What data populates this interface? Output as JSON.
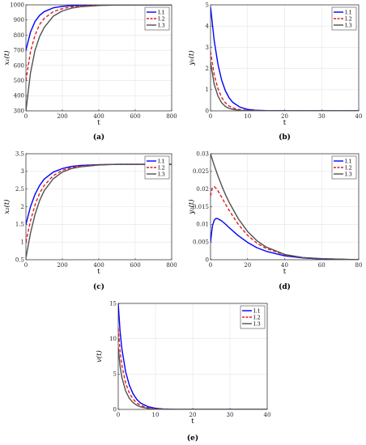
{
  "chart_data": [
    {
      "type": "line",
      "panel_label": "(a)",
      "xlabel": "t",
      "ylabel": "x₁(t)",
      "xlim": [
        0,
        800
      ],
      "ylim": [
        300,
        1000
      ],
      "xticks": [
        "0",
        "200",
        "400",
        "600",
        "800"
      ],
      "yticks": [
        "300",
        "400",
        "500",
        "600",
        "700",
        "800",
        "900",
        "1000"
      ],
      "grid": true,
      "legend_position": "top-right",
      "series": [
        {
          "name": "I.1",
          "color": "#0000ff",
          "style": "solid",
          "x": [
            0,
            25,
            50,
            75,
            100,
            150,
            200,
            250,
            300,
            400,
            500,
            600,
            800
          ],
          "y": [
            700,
            820,
            890,
            930,
            955,
            980,
            990,
            995,
            998,
            1000,
            1000,
            1000,
            1000
          ]
        },
        {
          "name": "I.2",
          "color": "#e41a1c",
          "style": "dashed",
          "x": [
            0,
            25,
            50,
            75,
            100,
            150,
            200,
            250,
            300,
            400,
            500,
            600,
            800
          ],
          "y": [
            500,
            690,
            800,
            870,
            910,
            955,
            975,
            987,
            993,
            998,
            1000,
            1000,
            1000
          ]
        },
        {
          "name": "I.3",
          "color": "#505050",
          "style": "solid",
          "x": [
            0,
            25,
            50,
            75,
            100,
            150,
            200,
            250,
            300,
            400,
            500,
            600,
            800
          ],
          "y": [
            300,
            550,
            700,
            790,
            850,
            925,
            960,
            978,
            988,
            996,
            999,
            1000,
            1000
          ]
        }
      ]
    },
    {
      "type": "line",
      "panel_label": "(b)",
      "xlabel": "t",
      "ylabel": "y₁(t)",
      "xlim": [
        0,
        40
      ],
      "ylim": [
        0,
        5
      ],
      "xticks": [
        "0",
        "10",
        "20",
        "30",
        "40"
      ],
      "yticks": [
        "0",
        "1",
        "2",
        "3",
        "4",
        "5"
      ],
      "grid": true,
      "legend_position": "top-right",
      "series": [
        {
          "name": "I.1",
          "color": "#0000ff",
          "style": "solid",
          "x": [
            0,
            1,
            2,
            3,
            4,
            5,
            6,
            8,
            10,
            12,
            15,
            20,
            40
          ],
          "y": [
            4.9,
            3.3,
            2.2,
            1.45,
            0.95,
            0.62,
            0.4,
            0.17,
            0.07,
            0.03,
            0.01,
            0,
            0
          ]
        },
        {
          "name": "I.2",
          "color": "#e41a1c",
          "style": "dashed",
          "x": [
            0,
            1,
            2,
            3,
            4,
            5,
            6,
            8,
            10,
            12,
            15,
            20,
            40
          ],
          "y": [
            2.8,
            1.7,
            1.05,
            0.63,
            0.38,
            0.23,
            0.14,
            0.05,
            0.02,
            0.01,
            0,
            0,
            0
          ]
        },
        {
          "name": "I.3",
          "color": "#505050",
          "style": "solid",
          "x": [
            0,
            1,
            2,
            3,
            4,
            5,
            6,
            8,
            10,
            12,
            15,
            20,
            40
          ],
          "y": [
            2.3,
            1.25,
            0.7,
            0.38,
            0.21,
            0.12,
            0.07,
            0.02,
            0.01,
            0,
            0,
            0,
            0
          ]
        }
      ]
    },
    {
      "type": "line",
      "panel_label": "(c)",
      "xlabel": "t",
      "ylabel": "x₂(t)",
      "xlim": [
        0,
        800
      ],
      "ylim": [
        0.5,
        3.5
      ],
      "xticks": [
        "0",
        "200",
        "400",
        "600",
        "800"
      ],
      "yticks": [
        "0.5",
        "1",
        "1.5",
        "2",
        "2.5",
        "3",
        "3.5"
      ],
      "grid": true,
      "legend_position": "top-right",
      "series": [
        {
          "name": "I.1",
          "color": "#0000ff",
          "style": "solid",
          "x": [
            0,
            25,
            50,
            75,
            100,
            150,
            200,
            250,
            300,
            400,
            500,
            600,
            800
          ],
          "y": [
            1.5,
            2.0,
            2.35,
            2.6,
            2.78,
            2.98,
            3.08,
            3.14,
            3.17,
            3.19,
            3.2,
            3.2,
            3.2
          ]
        },
        {
          "name": "I.2",
          "color": "#e41a1c",
          "style": "dashed",
          "x": [
            0,
            25,
            50,
            75,
            100,
            150,
            200,
            250,
            300,
            400,
            500,
            600,
            800
          ],
          "y": [
            1.0,
            1.6,
            2.05,
            2.38,
            2.6,
            2.88,
            3.03,
            3.11,
            3.15,
            3.19,
            3.2,
            3.2,
            3.2
          ]
        },
        {
          "name": "I.3",
          "color": "#505050",
          "style": "solid",
          "x": [
            0,
            25,
            50,
            75,
            100,
            150,
            200,
            250,
            300,
            400,
            500,
            600,
            800
          ],
          "y": [
            0.55,
            1.25,
            1.78,
            2.17,
            2.45,
            2.79,
            2.98,
            3.08,
            3.13,
            3.18,
            3.2,
            3.2,
            3.2
          ]
        }
      ]
    },
    {
      "type": "line",
      "panel_label": "(d)",
      "xlabel": "t",
      "ylabel": "y₂(t)",
      "xlim": [
        0,
        80
      ],
      "ylim": [
        0,
        0.03
      ],
      "xticks": [
        "0",
        "20",
        "40",
        "60",
        "80"
      ],
      "yticks": [
        "0",
        "0.005",
        "0.01",
        "0.015",
        "0.02",
        "0.025",
        "0.03"
      ],
      "grid": true,
      "legend_position": "top-right",
      "series": [
        {
          "name": "I.1",
          "color": "#0000ff",
          "style": "solid",
          "x": [
            0,
            1,
            2,
            3,
            4,
            6,
            8,
            10,
            15,
            20,
            25,
            30,
            40,
            50,
            60,
            80
          ],
          "y": [
            0.005,
            0.0095,
            0.0112,
            0.0117,
            0.0116,
            0.011,
            0.0101,
            0.0091,
            0.0068,
            0.0049,
            0.0034,
            0.0024,
            0.0011,
            0.0005,
            0.0002,
            0
          ]
        },
        {
          "name": "I.2",
          "color": "#e41a1c",
          "style": "dashed",
          "x": [
            0,
            1,
            2,
            3,
            4,
            6,
            8,
            10,
            15,
            20,
            25,
            30,
            40,
            50,
            60,
            80
          ],
          "y": [
            0.018,
            0.0203,
            0.0207,
            0.0202,
            0.0195,
            0.0177,
            0.0158,
            0.014,
            0.01,
            0.0069,
            0.0047,
            0.0032,
            0.0014,
            0.0006,
            0.0003,
            0
          ]
        },
        {
          "name": "I.3",
          "color": "#505050",
          "style": "solid",
          "x": [
            0,
            1,
            2,
            3,
            4,
            6,
            8,
            10,
            15,
            20,
            25,
            30,
            40,
            50,
            60,
            80
          ],
          "y": [
            0.03,
            0.0283,
            0.0267,
            0.0252,
            0.0237,
            0.021,
            0.0185,
            0.0163,
            0.0116,
            0.008,
            0.0054,
            0.0036,
            0.0015,
            0.0006,
            0.0003,
            0
          ]
        }
      ]
    },
    {
      "type": "line",
      "panel_label": "(e)",
      "xlabel": "t",
      "ylabel": "v(t)",
      "xlim": [
        0,
        40
      ],
      "ylim": [
        0,
        15
      ],
      "xticks": [
        "0",
        "10",
        "20",
        "30",
        "40"
      ],
      "yticks": [
        "0",
        "5",
        "10",
        "15"
      ],
      "grid": true,
      "legend_position": "top-right",
      "series": [
        {
          "name": "I.1",
          "color": "#0000ff",
          "style": "solid",
          "x": [
            0,
            0.5,
            1,
            2,
            3,
            4,
            5,
            6,
            8,
            10,
            12,
            15,
            20,
            40
          ],
          "y": [
            15,
            11,
            8.5,
            5.3,
            3.4,
            2.2,
            1.4,
            0.9,
            0.38,
            0.16,
            0.07,
            0.02,
            0,
            0
          ]
        },
        {
          "name": "I.2",
          "color": "#e41a1c",
          "style": "dashed",
          "x": [
            0,
            0.5,
            1,
            2,
            3,
            4,
            5,
            6,
            8,
            10,
            12,
            15,
            20,
            40
          ],
          "y": [
            11.5,
            8.2,
            6.2,
            3.7,
            2.3,
            1.45,
            0.9,
            0.57,
            0.22,
            0.09,
            0.04,
            0.01,
            0,
            0
          ]
        },
        {
          "name": "I.3",
          "color": "#505050",
          "style": "solid",
          "x": [
            0,
            0.5,
            1,
            2,
            3,
            4,
            5,
            6,
            8,
            10,
            12,
            15,
            20,
            40
          ],
          "y": [
            8.8,
            6.1,
            4.5,
            2.6,
            1.55,
            0.95,
            0.58,
            0.36,
            0.13,
            0.05,
            0.02,
            0,
            0,
            0
          ]
        }
      ]
    }
  ]
}
